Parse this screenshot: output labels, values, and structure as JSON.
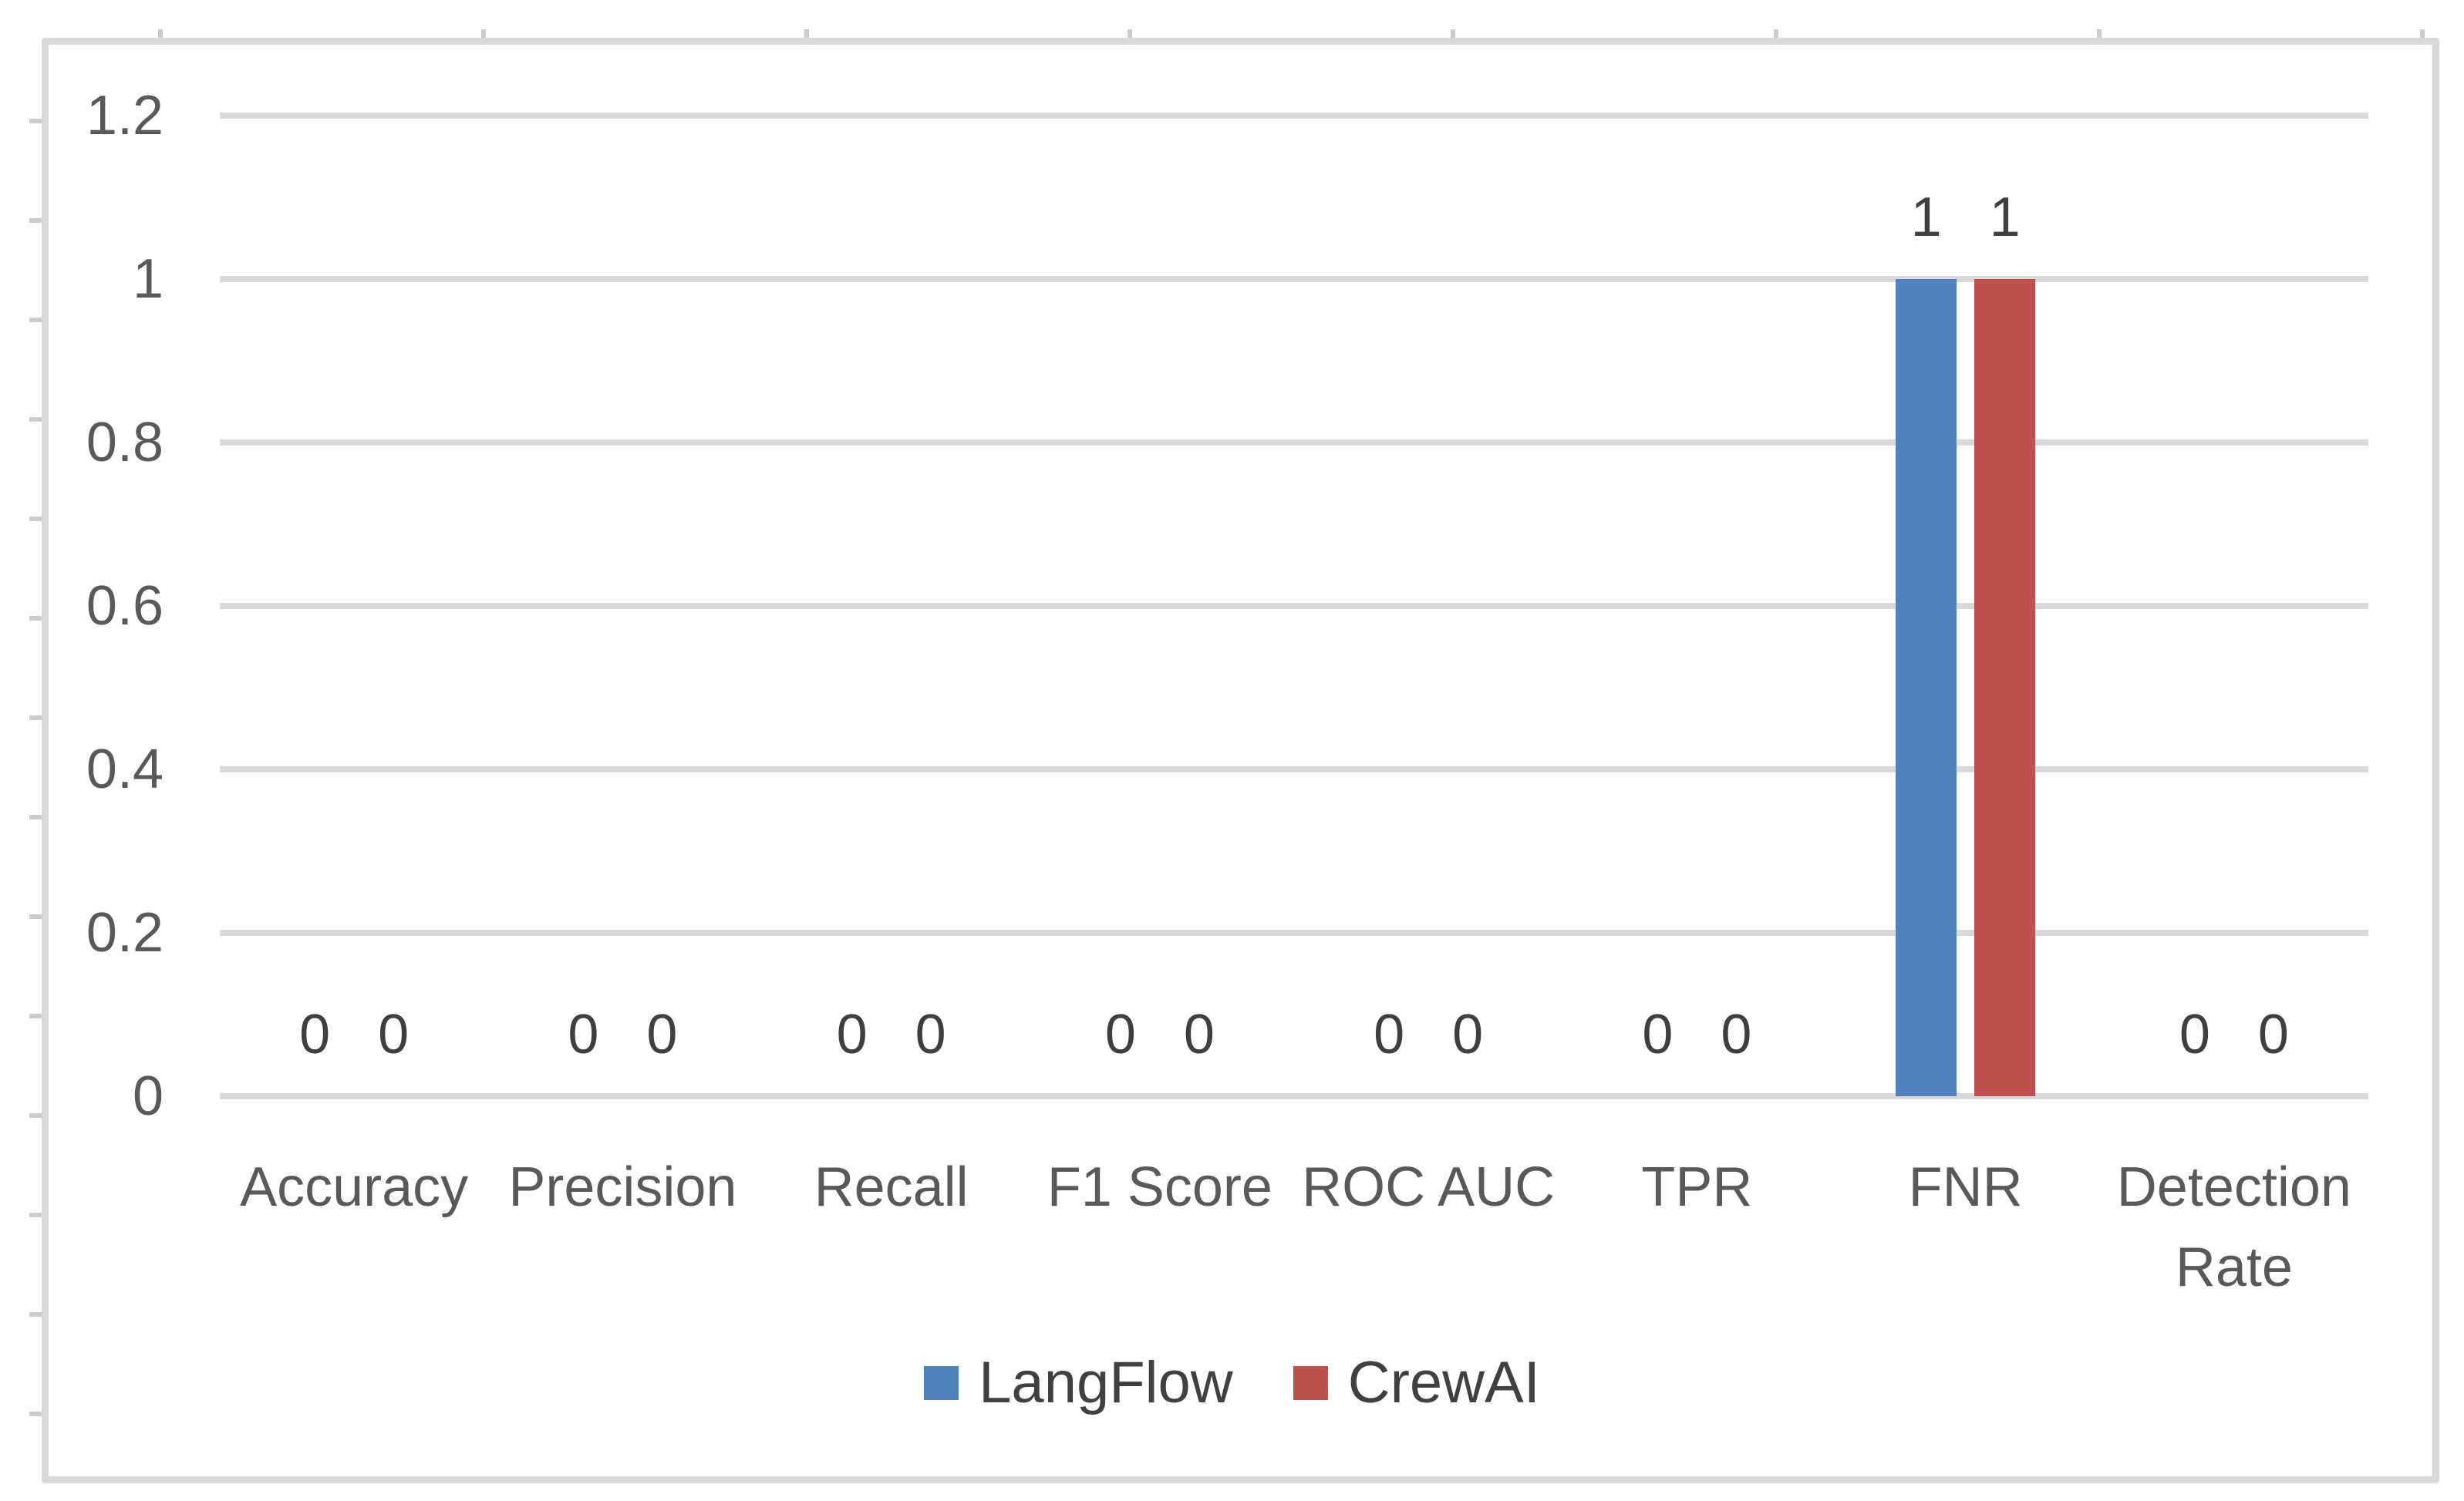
{
  "window": {
    "background": "#ffffff"
  },
  "chart": {
    "frame_border_color": "#d9d9d9",
    "plot_background": "#ffffff",
    "gridline_color": "#d9d9d9",
    "axis_text_color": "#595959",
    "category_text_color": "#595959",
    "data_label_color": "#3f3f3f",
    "legend_text_color": "#404040",
    "worksheet_tick_color": "#cccccc"
  },
  "chart_data": {
    "type": "bar",
    "title": "",
    "categories": [
      "Accuracy",
      "Precision",
      "Recall",
      "F1 Score",
      "ROC AUC",
      "TPR",
      "FNR",
      "Detection Rate"
    ],
    "series": [
      {
        "name": "LangFlow",
        "color": "#4f81bd",
        "values": [
          0,
          0,
          0,
          0,
          0,
          0,
          1,
          0
        ]
      },
      {
        "name": "CrewAI",
        "color": "#c0504d",
        "values": [
          0,
          0,
          0,
          0,
          0,
          0,
          1,
          0
        ]
      }
    ],
    "ylim": [
      0,
      1.2
    ],
    "yticks": [
      "1.2",
      "1",
      "0.8",
      "0.6",
      "0.4",
      "0.2",
      "0"
    ],
    "grid": true,
    "xlabel": "",
    "ylabel": "",
    "legend_position": "bottom",
    "data_labels": "outside-end"
  }
}
